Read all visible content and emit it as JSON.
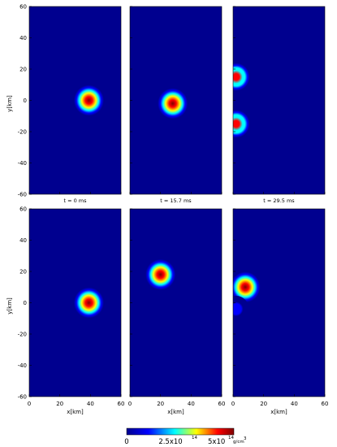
{
  "chart_data": {
    "type": "heatmap",
    "panels": [
      {
        "row": 0,
        "col": 0,
        "caption": "t = 0 ms",
        "blobs": [
          {
            "x": 39,
            "y": 0,
            "r": 11,
            "peak": 1.0
          }
        ]
      },
      {
        "row": 0,
        "col": 1,
        "caption": "t = 15.7 ms",
        "blobs": [
          {
            "x": 28,
            "y": -2,
            "r": 11,
            "peak": 1.0
          }
        ]
      },
      {
        "row": 0,
        "col": 2,
        "caption": "t = 29.5 ms",
        "blobs": [
          {
            "x": 2,
            "y": 15,
            "r": 10,
            "peak": 0.9
          },
          {
            "x": 2,
            "y": -15,
            "r": 10,
            "peak": 0.9
          }
        ]
      },
      {
        "row": 1,
        "col": 0,
        "caption": "",
        "blobs": [
          {
            "x": 39,
            "y": 0,
            "r": 11,
            "peak": 1.0
          }
        ]
      },
      {
        "row": 1,
        "col": 1,
        "caption": "",
        "blobs": [
          {
            "x": 20,
            "y": 18,
            "r": 11,
            "peak": 1.0
          }
        ]
      },
      {
        "row": 1,
        "col": 2,
        "caption": "",
        "blobs": [
          {
            "x": 8,
            "y": 10,
            "r": 11,
            "peak": 1.0
          },
          {
            "x": 2,
            "y": -4,
            "r": 8,
            "peak": 0.25
          }
        ]
      }
    ],
    "xlim": [
      0,
      60
    ],
    "ylim": [
      -60,
      60
    ],
    "xticks": [
      "0",
      "20",
      "40",
      "60"
    ],
    "yticks": [
      "60",
      "40",
      "20",
      "0",
      "-20",
      "-40",
      "-60"
    ],
    "xlabel": "x[km]",
    "ylabel": "y[km]",
    "colorbar": {
      "min_label": "0",
      "mid_label": "2.5x10",
      "mid_exp": "14",
      "max_label": "5x10",
      "max_exp": "14",
      "unit": "g/cm",
      "unit_exp": "3",
      "colormap": [
        "#00008f",
        "#0000ff",
        "#00ffff",
        "#ffff00",
        "#ff0000",
        "#800000"
      ]
    }
  }
}
